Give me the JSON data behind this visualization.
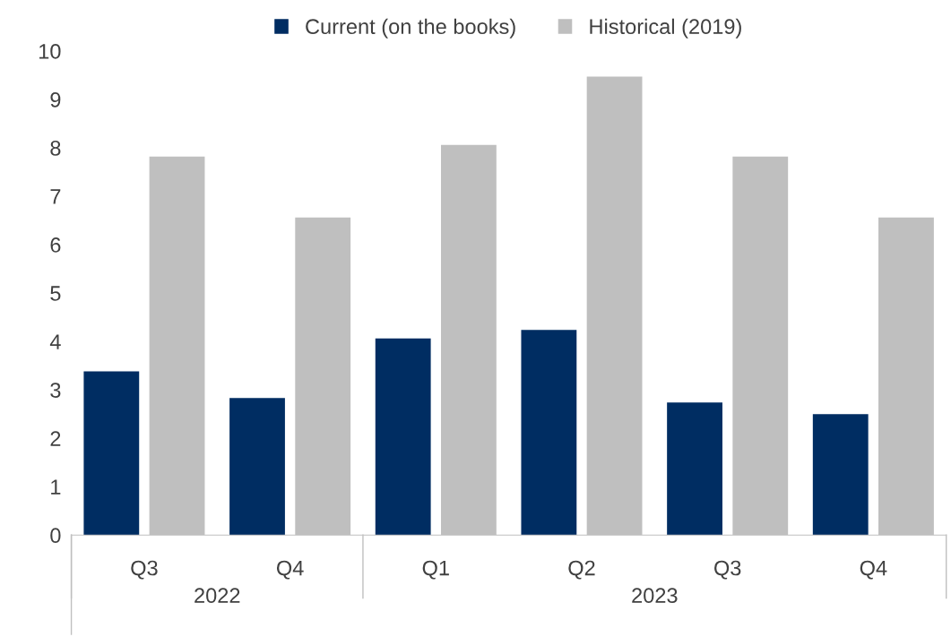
{
  "chart_data": {
    "type": "bar",
    "categories": [
      "Q3",
      "Q4",
      "Q1",
      "Q2",
      "Q3",
      "Q4"
    ],
    "series": [
      {
        "name": "Current (on the books)",
        "color": "#002d62",
        "values": [
          3.38,
          2.83,
          4.06,
          4.24,
          2.74,
          2.5
        ]
      },
      {
        "name": "Historical (2019)",
        "color": "#bfbfbf",
        "values": [
          7.82,
          6.56,
          8.06,
          9.47,
          7.82,
          6.56
        ]
      }
    ],
    "annotations": [
      "2022",
      "2023"
    ],
    "ylim": [
      0,
      10
    ],
    "yticks": [
      0,
      1,
      2,
      3,
      4,
      5,
      6,
      7,
      8,
      9,
      10
    ],
    "grid": false,
    "legend": "top"
  }
}
